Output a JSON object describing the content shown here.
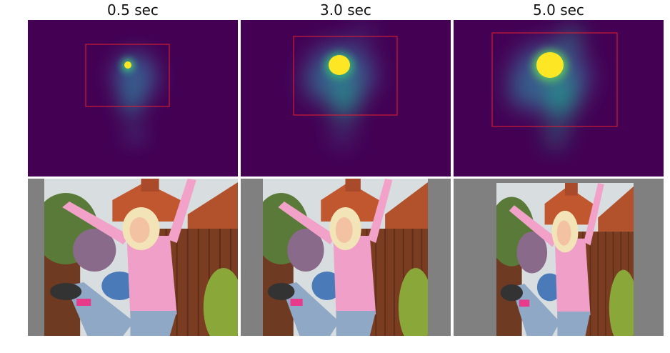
{
  "figure": {
    "columns": [
      {
        "title": "0.5 sec"
      },
      {
        "title": "3.0 sec"
      },
      {
        "title": "5.0 sec"
      }
    ]
  },
  "colors": {
    "heatmap_background": "#440154",
    "bounding_box": "#e8202a",
    "photo_padding": "#808080"
  }
}
